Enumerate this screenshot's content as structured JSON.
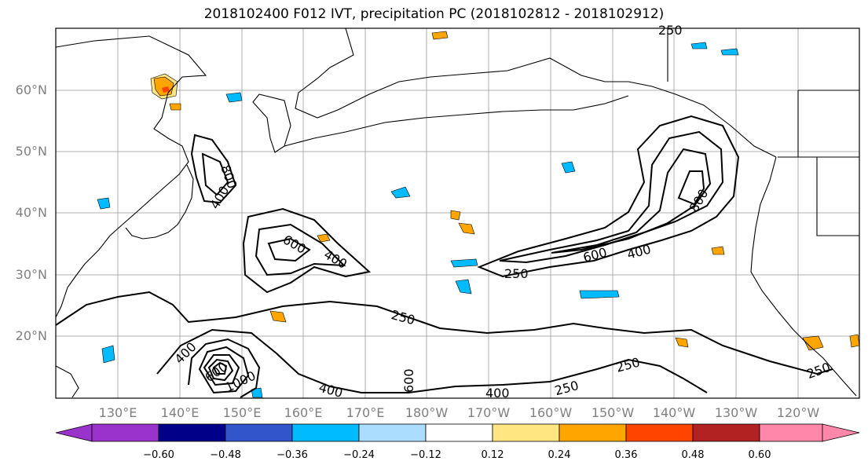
{
  "title": "2018102400 F012 IVT, precipitation PC (2018102812 - 2018102912)",
  "map": {
    "lat_labels": [
      "60°N",
      "50°N",
      "40°N",
      "30°N",
      "20°N"
    ],
    "lon_labels": [
      "130°E",
      "140°E",
      "150°E",
      "160°E",
      "170°E",
      "180°W",
      "170°W",
      "160°W",
      "150°W",
      "140°W",
      "130°W",
      "120°W"
    ],
    "contour_levels": [
      "250",
      "400",
      "600",
      "800",
      "1000"
    ],
    "contour_labels": [
      "250",
      "400",
      "600",
      "800",
      "1000",
      "250",
      "400",
      "600",
      "800",
      "400",
      "600",
      "400",
      "250",
      "600",
      "400",
      "250",
      "400",
      "250",
      "250"
    ]
  },
  "colorbar": {
    "labels": [
      "−0.60",
      "−0.48",
      "−0.36",
      "−0.24",
      "−0.12",
      "0.12",
      "0.24",
      "0.36",
      "0.48",
      "0.60"
    ],
    "colors": [
      "#9933cc",
      "#000088",
      "#3355cc",
      "#00bbff",
      "#aaddff",
      "#ffffff",
      "#ffe680",
      "#ffa500",
      "#ff4400",
      "#b22222",
      "#ff88aa"
    ]
  }
}
